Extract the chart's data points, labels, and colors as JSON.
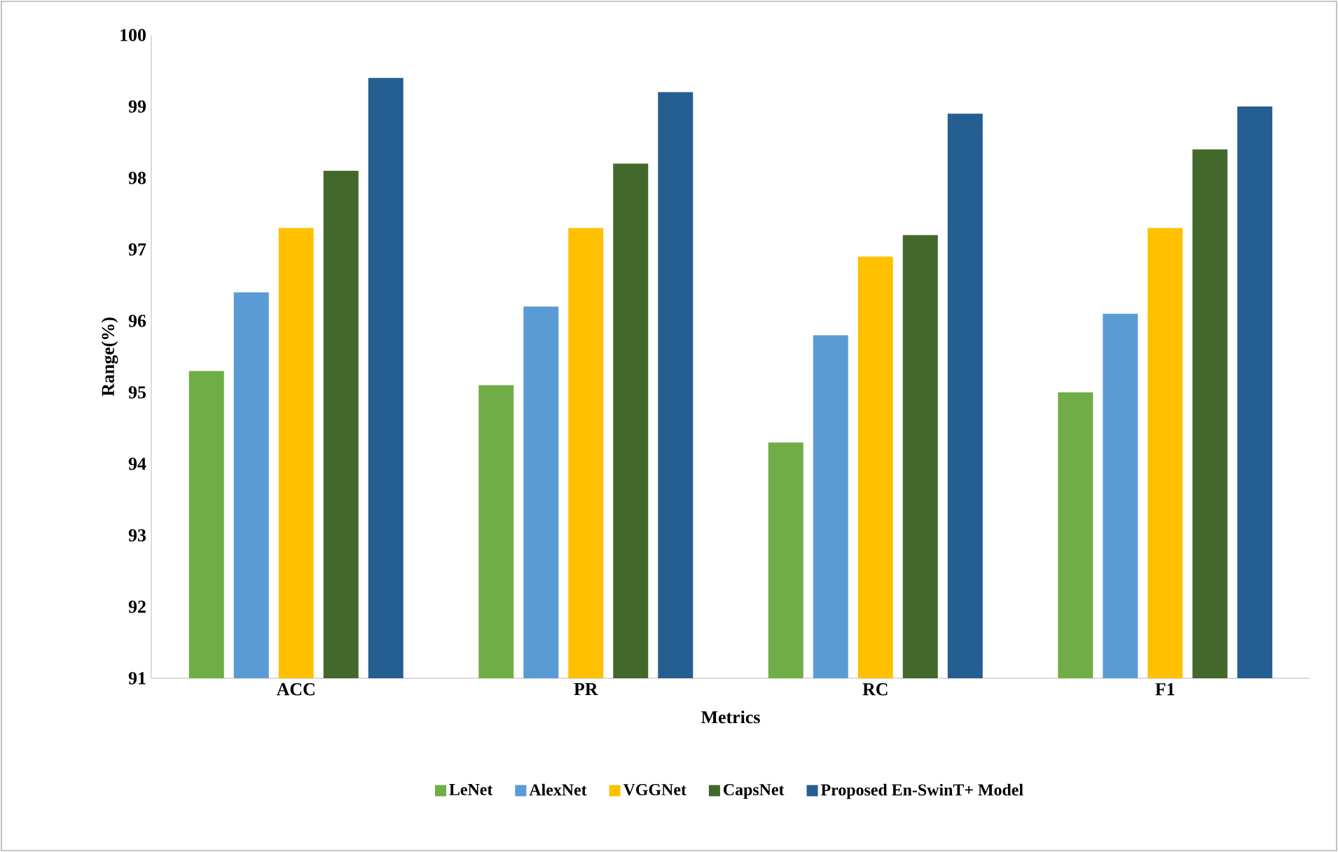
{
  "chart_data": {
    "type": "bar",
    "xlabel": "Metrics",
    "ylabel": "Range(%)",
    "categories": [
      "ACC",
      "PR",
      "RC",
      "F1"
    ],
    "series": [
      {
        "name": "LeNet",
        "color": "#70ad47",
        "values": [
          95.3,
          95.1,
          94.3,
          95.0
        ]
      },
      {
        "name": "AlexNet",
        "color": "#5b9bd5",
        "values": [
          96.4,
          96.2,
          95.8,
          96.1
        ]
      },
      {
        "name": "VGGNet",
        "color": "#ffc000",
        "values": [
          97.3,
          97.3,
          96.9,
          97.3
        ]
      },
      {
        "name": "CapsNet",
        "color": "#43682b",
        "values": [
          98.1,
          98.2,
          97.2,
          98.4
        ]
      },
      {
        "name": "Proposed En-SwinT+ Model",
        "color": "#255e91",
        "values": [
          99.4,
          99.2,
          98.9,
          99.0
        ]
      }
    ],
    "ylim": [
      91,
      100
    ],
    "yticks": [
      91,
      92,
      93,
      94,
      95,
      96,
      97,
      98,
      99,
      100
    ],
    "grid": false,
    "legend": "bottom"
  }
}
